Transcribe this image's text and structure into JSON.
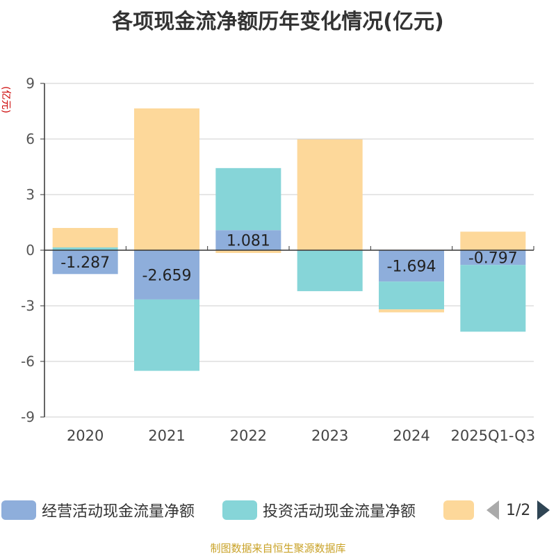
{
  "title": "各项现金流净额历年变化情况(亿元)",
  "source_note": "制图数据来自恒生聚源数据库",
  "legend_page": "1/2",
  "chart_data": {
    "type": "bar",
    "stacked": true,
    "unit_label": "(亿元)",
    "categories": [
      "2020",
      "2021",
      "2022",
      "2023",
      "2024",
      "2025Q1-Q3"
    ],
    "ylim": [
      -9,
      9
    ],
    "yticks": [
      -9,
      -6,
      -3,
      0,
      3,
      6,
      9
    ],
    "grid": true,
    "legend_position": "bottom",
    "series": [
      {
        "name": "经营活动现金流量净额",
        "color": "#8eaedb",
        "values": [
          -1.287,
          -2.659,
          1.081,
          -0.03,
          -1.694,
          -0.797
        ],
        "labels": [
          "-1.287",
          "-2.659",
          "1.081",
          "",
          "-1.694",
          "-0.797"
        ]
      },
      {
        "name": "投资活动现金流量净额",
        "color": "#86d5d8",
        "values": [
          0.15,
          -3.85,
          3.35,
          -2.18,
          -1.5,
          -3.6
        ],
        "labels": [
          "",
          "",
          "",
          "",
          "",
          ""
        ]
      },
      {
        "name": "",
        "color": "#fdd89a",
        "values": [
          1.05,
          7.65,
          -0.15,
          5.98,
          -0.16,
          1.0
        ],
        "labels": [
          "",
          "",
          "",
          "",
          "",
          ""
        ]
      }
    ]
  }
}
